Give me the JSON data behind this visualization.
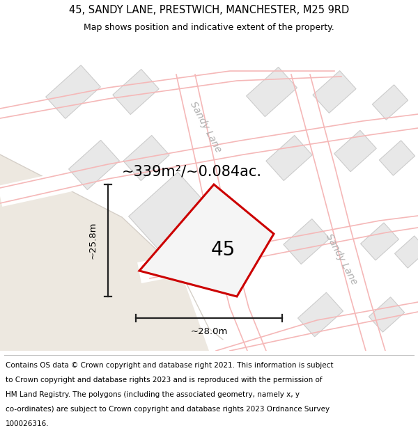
{
  "title": "45, SANDY LANE, PRESTWICH, MANCHESTER, M25 9RD",
  "subtitle": "Map shows position and indicative extent of the property.",
  "area_label": "~339m²/~0.084ac.",
  "dim_width": "~28.0m",
  "dim_height": "~25.8m",
  "property_label": "45",
  "street_label_top": "Sandy Lane",
  "street_label_right": "Sandy Lane",
  "footer_lines": [
    "Contains OS data © Crown copyright and database right 2021. This information is subject",
    "to Crown copyright and database rights 2023 and is reproduced with the permission of",
    "HM Land Registry. The polygons (including the associated geometry, namely x, y",
    "co-ordinates) are subject to Crown copyright and database rights 2023 Ordnance Survey",
    "100026316."
  ],
  "map_bg": "#f7f7f7",
  "map_bg_beige": "#ede8e0",
  "building_fill": "#e8e8e8",
  "building_stroke": "#cccccc",
  "property_fill": "#f5f5f5",
  "property_stroke": "#cc0000",
  "pink_line_color": "#f5b8b8",
  "dim_line_color": "#222222",
  "road_gray_fill": "#e0e0e0",
  "title_fontsize": 10.5,
  "subtitle_fontsize": 9,
  "area_label_fontsize": 15,
  "property_label_fontsize": 20,
  "footer_fontsize": 7.5,
  "street_label_fontsize": 10
}
